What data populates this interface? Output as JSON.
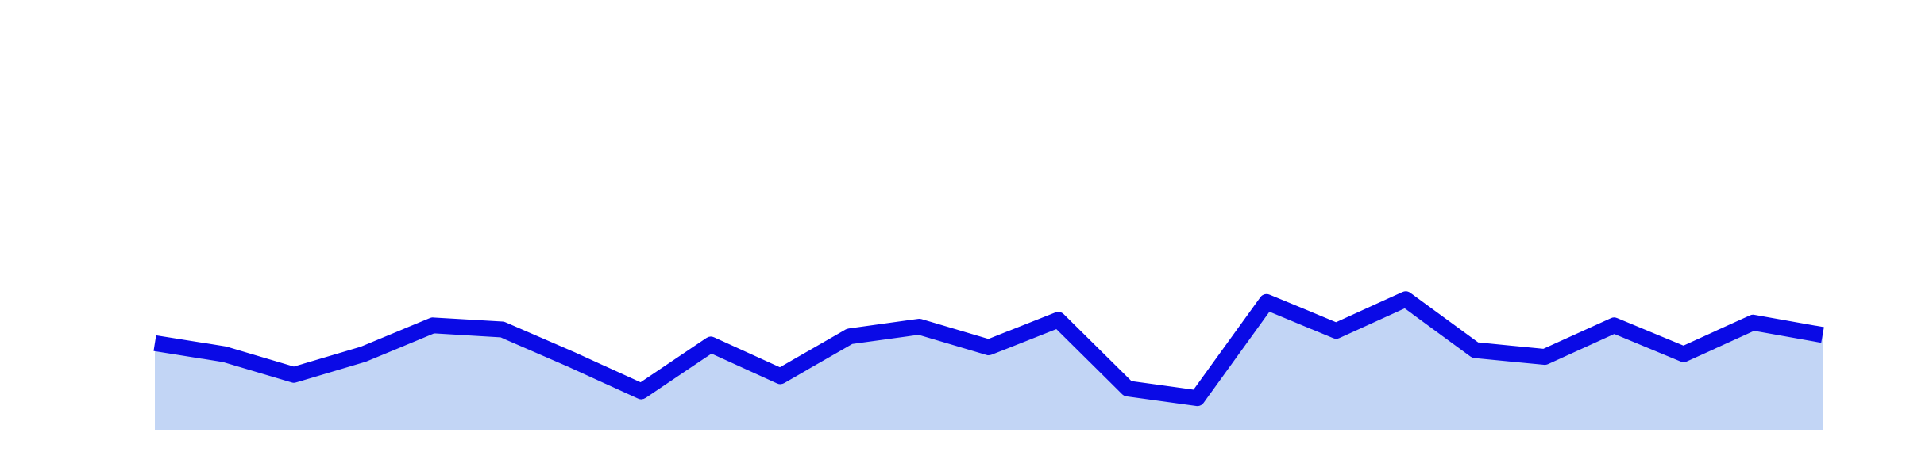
{
  "chart_data": {
    "type": "area",
    "title": "",
    "xlabel": "",
    "ylabel": "",
    "grid": false,
    "legend": "none",
    "x": [
      0,
      1,
      2,
      3,
      4,
      5,
      6,
      7,
      8,
      9,
      10,
      11,
      12,
      13,
      14,
      15,
      16,
      17,
      18,
      19,
      20,
      21,
      22,
      23,
      24
    ],
    "xlim": [
      0,
      24
    ],
    "ylim": [
      0,
      3
    ],
    "series": [
      {
        "values": [
          0.63,
          0.55,
          0.4,
          0.55,
          0.76,
          0.73,
          0.51,
          0.28,
          0.62,
          0.39,
          0.68,
          0.75,
          0.6,
          0.8,
          0.3,
          0.23,
          0.93,
          0.72,
          0.95,
          0.58,
          0.53,
          0.76,
          0.55,
          0.78,
          0.69
        ],
        "line_color": "#0a0ae6",
        "fill_color": "#c2d5f5"
      }
    ]
  }
}
